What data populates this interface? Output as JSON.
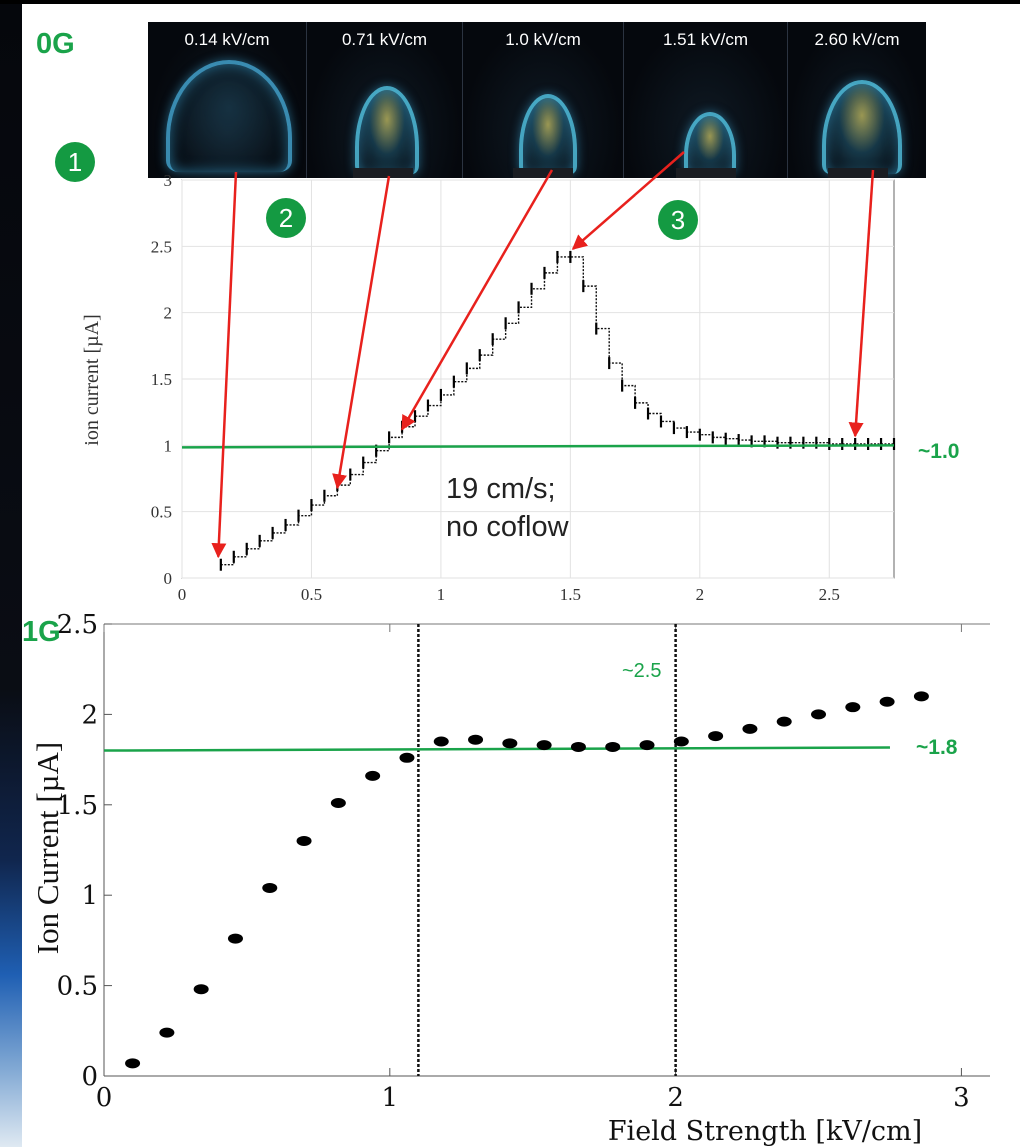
{
  "labels": {
    "zero_g": "0G",
    "one_g": "1G",
    "circle1": "1",
    "circle2": "2",
    "circle3": "3",
    "top_value": "~1.0",
    "bottom_value": "~1.8",
    "peak_marker": "~2.5",
    "annotation_line1": "19 cm/s;",
    "annotation_line2": "no coflow"
  },
  "colors": {
    "green": "#1aa34a",
    "arrow": "#e8211d",
    "circle_fill": "#149a42"
  },
  "flame_images": [
    {
      "label": "0.14 kV/cm"
    },
    {
      "label": "0.71 kV/cm"
    },
    {
      "label": "1.0 kV/cm"
    },
    {
      "label": "1.51 kV/cm"
    },
    {
      "label": "2.60 kV/cm"
    }
  ],
  "chart_data": [
    {
      "type": "line",
      "ylabel": "ion current [µA]",
      "xlabel": "",
      "xlim": [
        0,
        2.75
      ],
      "ylim": [
        0,
        3
      ],
      "xticks": [
        "0",
        "0.5",
        "1",
        "1.5",
        "2",
        "2.5"
      ],
      "yticks": [
        "0",
        "0.5",
        "1",
        "1.5",
        "2",
        "2.5",
        "3"
      ],
      "grid": true,
      "series": [
        {
          "x": [
            0.15,
            0.2,
            0.25,
            0.3,
            0.35,
            0.4,
            0.45,
            0.5,
            0.55,
            0.6,
            0.65,
            0.7,
            0.75,
            0.8,
            0.85,
            0.9,
            0.95,
            1.0,
            1.05,
            1.1,
            1.15,
            1.2,
            1.25,
            1.3,
            1.35,
            1.4,
            1.45,
            1.5,
            1.55,
            1.6,
            1.65,
            1.7,
            1.75,
            1.8,
            1.85,
            1.9,
            1.95,
            2.0,
            2.05,
            2.1,
            2.15,
            2.2,
            2.25,
            2.3,
            2.35,
            2.4,
            2.45,
            2.5,
            2.55,
            2.6,
            2.65,
            2.7,
            2.75
          ],
          "y": [
            0.1,
            0.16,
            0.22,
            0.28,
            0.34,
            0.4,
            0.47,
            0.55,
            0.62,
            0.7,
            0.78,
            0.87,
            0.96,
            1.06,
            1.14,
            1.22,
            1.3,
            1.38,
            1.48,
            1.58,
            1.68,
            1.8,
            1.92,
            2.04,
            2.18,
            2.3,
            2.42,
            2.42,
            2.2,
            1.88,
            1.62,
            1.45,
            1.32,
            1.24,
            1.18,
            1.13,
            1.1,
            1.08,
            1.06,
            1.05,
            1.04,
            1.03,
            1.03,
            1.02,
            1.02,
            1.02,
            1.02,
            1.01,
            1.01,
            1.01,
            1.01,
            1.01,
            1.01
          ]
        }
      ],
      "reference_line": {
        "value": 1.0
      },
      "arrows_to_x": [
        0.14,
        0.6,
        0.85,
        1.51,
        2.6
      ]
    },
    {
      "type": "scatter",
      "xlabel": "Field Strength [kV/cm]",
      "ylabel": "Ion Current [µA]",
      "xlim": [
        0,
        3.1
      ],
      "ylim": [
        0,
        2.5
      ],
      "xticks": [
        "0",
        "1",
        "2",
        "3"
      ],
      "yticks": [
        "0",
        "0.5",
        "1",
        "1.5",
        "2",
        "2.5"
      ],
      "series": [
        {
          "x": [
            0.1,
            0.22,
            0.34,
            0.46,
            0.58,
            0.7,
            0.82,
            0.94,
            1.06,
            1.18,
            1.3,
            1.42,
            1.54,
            1.66,
            1.78,
            1.9,
            2.02,
            2.14,
            2.26,
            2.38,
            2.5,
            2.62,
            2.74,
            2.86
          ],
          "y": [
            0.07,
            0.24,
            0.48,
            0.76,
            1.04,
            1.3,
            1.51,
            1.66,
            1.76,
            1.85,
            1.86,
            1.84,
            1.83,
            1.82,
            1.82,
            1.83,
            1.85,
            1.88,
            1.92,
            1.96,
            2.0,
            2.04,
            2.07,
            2.1
          ]
        }
      ],
      "vertical_lines": [
        1.1,
        2.0
      ],
      "reference_line": {
        "value": 1.8,
        "x_start": 0,
        "x_end": 2.75
      }
    }
  ]
}
